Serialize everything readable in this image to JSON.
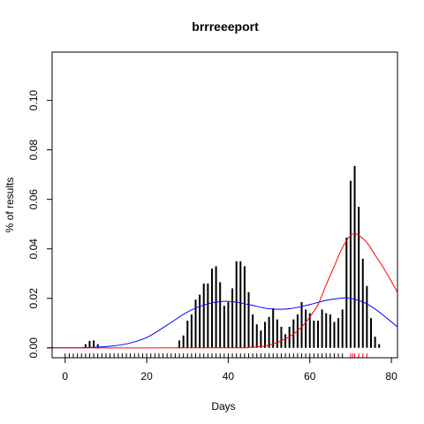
{
  "chart_data": {
    "type": "bar",
    "title": "brrreeeport",
    "xlabel": "Days",
    "ylabel": "% of results",
    "xlim": [
      -3.2,
      81.5
    ],
    "ylim": [
      -0.004,
      0.1195
    ],
    "x_ticks": [
      0,
      20,
      40,
      60,
      80
    ],
    "y_ticks": [
      0.0,
      0.02,
      0.04,
      0.06,
      0.08,
      0.1
    ],
    "x_tick_labels": [
      "0",
      "20",
      "40",
      "60",
      "80"
    ],
    "y_tick_labels": [
      "0.00",
      "0.02",
      "0.04",
      "0.06",
      "0.08",
      "0.10"
    ],
    "grid": false,
    "legend": "none",
    "bars": {
      "x": [
        5,
        6,
        7,
        8,
        28,
        29,
        30,
        31,
        32,
        33,
        34,
        35,
        36,
        37,
        38,
        39,
        40,
        41,
        42,
        43,
        44,
        45,
        46,
        47,
        48,
        49,
        50,
        51,
        52,
        53,
        54,
        55,
        56,
        57,
        58,
        59,
        60,
        61,
        62,
        63,
        64,
        65,
        66,
        67,
        68,
        69,
        70,
        71,
        72,
        73,
        74,
        75,
        76,
        77
      ],
      "values": [
        0.0015,
        0.0028,
        0.003,
        0.0015,
        0.003,
        0.005,
        0.011,
        0.0135,
        0.0195,
        0.0215,
        0.026,
        0.026,
        0.032,
        0.033,
        0.0265,
        0.017,
        0.0185,
        0.024,
        0.035,
        0.035,
        0.033,
        0.0225,
        0.0135,
        0.0095,
        0.007,
        0.0105,
        0.0125,
        0.016,
        0.0115,
        0.0085,
        0.0055,
        0.0085,
        0.0115,
        0.0135,
        0.0185,
        0.0155,
        0.014,
        0.011,
        0.011,
        0.0155,
        0.014,
        0.0135,
        0.0105,
        0.012,
        0.0155,
        0.0445,
        0.0675,
        0.0735,
        0.057,
        0.036,
        0.025,
        0.012,
        0.0045,
        0.0015
      ],
      "color": "#000000"
    },
    "series": [
      {
        "type": "line",
        "color": "#0000ff",
        "x": [
          -3.2,
          0,
          5,
          10,
          15,
          20,
          25,
          30,
          35,
          40,
          45,
          50,
          55,
          60,
          65,
          70,
          75,
          81.5
        ],
        "values": [
          0.0,
          0.0,
          0.0001,
          0.0005,
          0.0016,
          0.0042,
          0.0092,
          0.0145,
          0.0178,
          0.0188,
          0.0175,
          0.0158,
          0.0158,
          0.0175,
          0.0195,
          0.02,
          0.0168,
          0.0085
        ]
      },
      {
        "type": "line",
        "color": "#ff0000",
        "x": [
          -3.2,
          0,
          40,
          45,
          50,
          55,
          58,
          60,
          62,
          64,
          66,
          68,
          70,
          71,
          72,
          74,
          76,
          78,
          81.5
        ],
        "values": [
          0.0,
          0.0,
          0.0,
          0.0002,
          0.0011,
          0.0045,
          0.0085,
          0.0125,
          0.0175,
          0.0255,
          0.033,
          0.0405,
          0.0455,
          0.046,
          0.0455,
          0.0425,
          0.0375,
          0.0325,
          0.0225
        ]
      }
    ],
    "rug": {
      "black_x": [
        0,
        1,
        2,
        3,
        4,
        5,
        6,
        7,
        8,
        9,
        10,
        11,
        12,
        13,
        14,
        15,
        16,
        17,
        18,
        19,
        20,
        21,
        22,
        23,
        24,
        25,
        26,
        27,
        28,
        29,
        30,
        31,
        32,
        33,
        34,
        35,
        36,
        37,
        38,
        39,
        40,
        41,
        42,
        43,
        44,
        45,
        46,
        47,
        48,
        49,
        50,
        51,
        52,
        53,
        54,
        55,
        56,
        57,
        58,
        59,
        60,
        61,
        62,
        63,
        64,
        65,
        66,
        67,
        68
      ],
      "red_x": [
        70,
        70.5,
        71,
        72,
        73,
        74
      ],
      "black_color": "#000000",
      "red_color": "#ff0000"
    }
  }
}
